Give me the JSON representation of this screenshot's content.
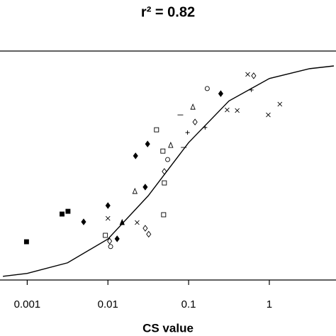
{
  "chart_data": {
    "type": "scatter",
    "title": "r² = 0.82",
    "xlabel": "CS value",
    "xscale": "log",
    "xlim": [
      0.00046,
      6.7
    ],
    "ylim": [
      0,
      1
    ],
    "xticks": [
      0.001,
      0.01,
      0.1,
      1
    ],
    "color": "#000000",
    "series": [
      {
        "marker": "square-filled",
        "x": [
          0.00098,
          0.0027,
          0.0032
        ],
        "values": [
          0.167,
          0.288,
          0.3
        ]
      },
      {
        "marker": "diamond-filled",
        "x": [
          0.005,
          0.01,
          0.013,
          0.022,
          0.029,
          0.031,
          0.25
        ],
        "values": [
          0.254,
          0.325,
          0.18,
          0.542,
          0.406,
          0.594,
          0.814
        ]
      },
      {
        "marker": "triangle-filled",
        "x": [
          0.015
        ],
        "values": [
          0.251
        ]
      },
      {
        "marker": "square",
        "x": [
          0.0093,
          0.04,
          0.048,
          0.05,
          0.049
        ],
        "values": [
          0.195,
          0.656,
          0.563,
          0.424,
          0.285
        ]
      },
      {
        "marker": "diamond",
        "x": [
          0.0105,
          0.029,
          0.032,
          0.05,
          0.12,
          0.64
        ],
        "values": [
          0.17,
          0.226,
          0.2,
          0.474,
          0.69,
          0.892
        ]
      },
      {
        "marker": "triangle",
        "x": [
          0.0216,
          0.06,
          0.113
        ],
        "values": [
          0.387,
          0.588,
          0.755
        ]
      },
      {
        "marker": "circle",
        "x": [
          0.0108,
          0.055,
          0.17
        ],
        "values": [
          0.146,
          0.526,
          0.836
        ]
      },
      {
        "marker": "cross",
        "x": [
          0.01,
          0.023,
          0.3,
          0.4,
          0.54,
          0.97,
          1.35
        ],
        "values": [
          0.269,
          0.251,
          0.743,
          0.74,
          0.898,
          0.721,
          0.768
        ]
      },
      {
        "marker": "plus",
        "x": [
          0.097,
          0.16,
          0.6
        ],
        "values": [
          0.644,
          0.666,
          0.83
        ]
      },
      {
        "marker": "dash",
        "x": [
          0.079,
          0.087
        ],
        "values": [
          0.721,
          0.579
        ]
      }
    ],
    "fit": {
      "x": [
        0.0005,
        0.001,
        0.00316,
        0.01,
        0.0316,
        0.1,
        0.316,
        1,
        3.16,
        6.3
      ],
      "values": [
        0.016,
        0.029,
        0.075,
        0.179,
        0.368,
        0.6,
        0.782,
        0.88,
        0.923,
        0.935
      ]
    }
  }
}
